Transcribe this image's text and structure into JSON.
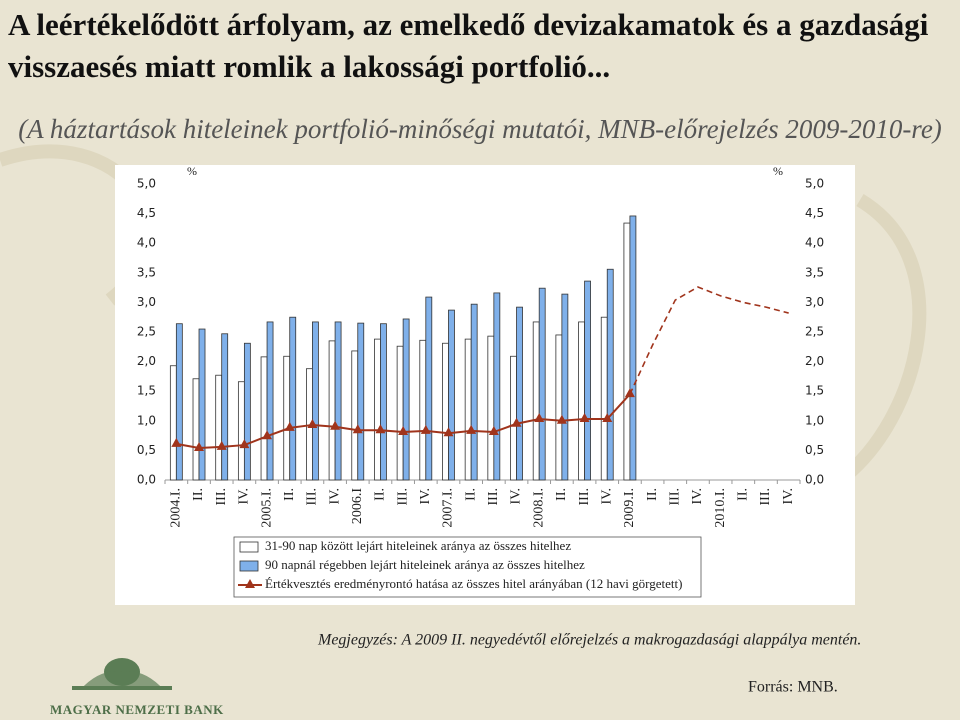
{
  "header": {
    "title": "A leértékelődött árfolyam, az emelkedő devizakamatok és a gazdasági visszaesés miatt romlik a lakossági portfolió...",
    "subtitle": "(A háztartások hiteleinek portfolió-minőségi mutatói, MNB-előrejelzés 2009-2010-re)"
  },
  "chart_data": {
    "type": "bar-line",
    "y_unit": "%",
    "y2_unit": "%",
    "categories": [
      "2004.I.",
      "II.",
      "III.",
      "IV.",
      "2005.I.",
      "II.",
      "III.",
      "IV.",
      "2006.I",
      "II.",
      "III.",
      "IV.",
      "2007.I.",
      "II.",
      "III.",
      "IV.",
      "2008.I.",
      "II.",
      "III.",
      "IV.",
      "2009.I.",
      "II.",
      "III.",
      "IV.",
      "2010.I.",
      "II.",
      "III.",
      "IV."
    ],
    "ylim": [
      0,
      5
    ],
    "y2lim": [
      0,
      5
    ],
    "yticks": [
      {
        "value": 0,
        "label": "0,0"
      },
      {
        "value": 0.5,
        "label": "0,5"
      },
      {
        "value": 1,
        "label": "1,0"
      },
      {
        "value": 1.5,
        "label": "1,5"
      },
      {
        "value": 2,
        "label": "2,0"
      },
      {
        "value": 2.5,
        "label": "2,5"
      },
      {
        "value": 3,
        "label": "3,0"
      },
      {
        "value": 3.5,
        "label": "3,5"
      },
      {
        "value": 4,
        "label": "4,0"
      },
      {
        "value": 4.5,
        "label": "4,5"
      },
      {
        "value": 5,
        "label": "5,0"
      }
    ],
    "y2ticks": [
      {
        "value": 0,
        "label": "0,0"
      },
      {
        "value": 0.5,
        "label": "0,5"
      },
      {
        "value": 1,
        "label": "1,0"
      },
      {
        "value": 1.5,
        "label": "1,5"
      },
      {
        "value": 2,
        "label": "2,0"
      },
      {
        "value": 2.5,
        "label": "2,5"
      },
      {
        "value": 3,
        "label": "3,0"
      },
      {
        "value": 3.5,
        "label": "3,5"
      },
      {
        "value": 4,
        "label": "4,0"
      },
      {
        "value": 4.5,
        "label": "4,5"
      },
      {
        "value": 5,
        "label": "5,0"
      }
    ],
    "series": [
      {
        "name": "31-90 nap között lejárt hiteleinek aránya az összes hitelhez",
        "kind": "bar",
        "color": "#ffffff",
        "values": [
          1.93,
          1.71,
          1.77,
          1.66,
          2.08,
          2.09,
          1.88,
          2.35,
          2.18,
          2.38,
          2.26,
          2.36,
          2.31,
          2.38,
          2.43,
          2.09,
          2.67,
          2.45,
          2.67,
          2.75,
          4.34,
          null,
          null,
          null,
          null,
          null,
          null,
          null
        ]
      },
      {
        "name": "90 napnál régebben lejárt hiteleinek aránya az összes hitelhez",
        "kind": "bar",
        "color": "#7fb0ea",
        "values": [
          2.64,
          2.55,
          2.47,
          2.31,
          2.67,
          2.75,
          2.67,
          2.67,
          2.65,
          2.64,
          2.72,
          3.09,
          2.87,
          2.97,
          3.16,
          2.92,
          3.24,
          3.14,
          3.36,
          3.56,
          4.46,
          null,
          null,
          null,
          null,
          null,
          null,
          null
        ]
      },
      {
        "name": "Értékvesztés eredményrontó hatása az összes hitel arányában (12 havi görgetett)",
        "kind": "line",
        "axis": "y2",
        "color": "#a0341c",
        "values": [
          0.61,
          0.54,
          0.56,
          0.59,
          0.74,
          0.88,
          0.93,
          0.9,
          0.84,
          0.84,
          0.81,
          0.83,
          0.79,
          0.83,
          0.81,
          0.95,
          1.03,
          1.0,
          1.03,
          1.03,
          1.45,
          null,
          null,
          null,
          null,
          null,
          null,
          null
        ],
        "forecast_values": [
          null,
          null,
          null,
          null,
          null,
          null,
          null,
          null,
          null,
          null,
          null,
          null,
          null,
          null,
          null,
          null,
          null,
          null,
          null,
          null,
          1.45,
          2.28,
          3.04,
          3.26,
          3.11,
          3.0,
          2.92,
          2.82
        ]
      }
    ]
  },
  "note": "Megjegyzés: A 2009 II. negyedévtől előrejelzés a makrogazdasági alappálya mentén.",
  "source": "Forrás: MNB.",
  "logo": {
    "text": "MAGYAR NEMZETI BANK"
  }
}
